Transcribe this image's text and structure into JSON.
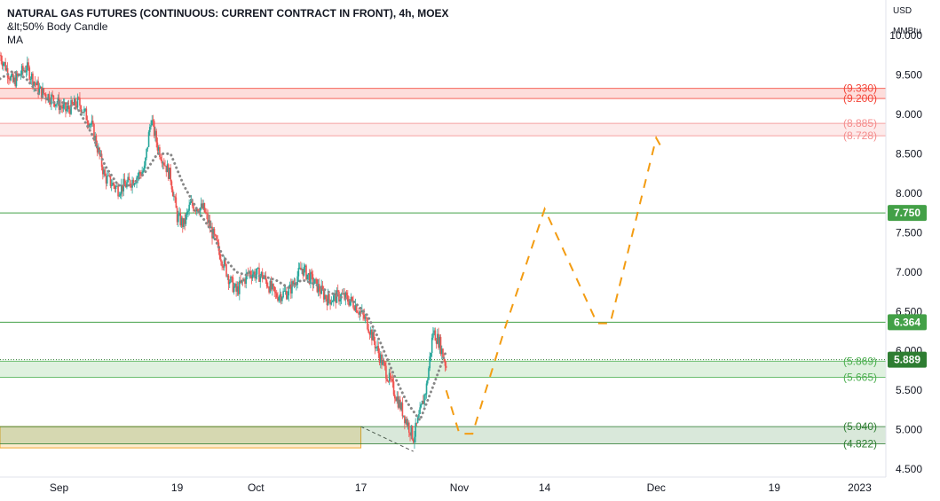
{
  "legend": {
    "title": "NATURAL GAS FUTURES (CONTINUOUS: CURRENT CONTRACT IN FRONT), 4h, MOEX",
    "indicator1": "&lt;50% Body Candle",
    "indicator2": "MA"
  },
  "axis": {
    "unit_line1": "USD",
    "unit_line2": "MMBtu"
  },
  "chart_data": {
    "type": "candlestick",
    "title": "NATURAL GAS FUTURES (CONTINUOUS: CURRENT CONTRACT IN FRONT), 4h, MOEX",
    "ylim": [
      4.4,
      10.45
    ],
    "yticks": [
      "10.000",
      "9.500",
      "9.000",
      "8.500",
      "8.000",
      "7.500",
      "7.000",
      "6.500",
      "6.000",
      "5.500",
      "5.000",
      "4.500"
    ],
    "xlim": [
      "2022-08-23",
      "2023-01-05"
    ],
    "xticks": [
      {
        "label": "Sep",
        "date": "2022-09-01"
      },
      {
        "label": "19",
        "date": "2022-09-19"
      },
      {
        "label": "Oct",
        "date": "2022-10-01"
      },
      {
        "label": "17",
        "date": "2022-10-17"
      },
      {
        "label": "Nov",
        "date": "2022-11-01"
      },
      {
        "label": "14",
        "date": "2022-11-14"
      },
      {
        "label": "Dec",
        "date": "2022-12-01"
      },
      {
        "label": "19",
        "date": "2022-12-19"
      },
      {
        "label": "2023",
        "date": "2023-01-01"
      }
    ],
    "price_path": [
      [
        "2022-08-23",
        9.75
      ],
      [
        "2022-08-25",
        9.4
      ],
      [
        "2022-08-27",
        9.6
      ],
      [
        "2022-08-29",
        9.3
      ],
      [
        "2022-08-31",
        9.2
      ],
      [
        "2022-09-02",
        9.05
      ],
      [
        "2022-09-04",
        9.15
      ],
      [
        "2022-09-06",
        8.85
      ],
      [
        "2022-09-08",
        8.2
      ],
      [
        "2022-09-10",
        8.05
      ],
      [
        "2022-09-12",
        8.15
      ],
      [
        "2022-09-14",
        8.3
      ],
      [
        "2022-09-15",
        8.95
      ],
      [
        "2022-09-16",
        8.6
      ],
      [
        "2022-09-18",
        8.2
      ],
      [
        "2022-09-19",
        7.7
      ],
      [
        "2022-09-20",
        7.6
      ],
      [
        "2022-09-21",
        7.85
      ],
      [
        "2022-09-23",
        7.8
      ],
      [
        "2022-09-25",
        7.35
      ],
      [
        "2022-09-27",
        6.9
      ],
      [
        "2022-09-28",
        6.75
      ],
      [
        "2022-09-30",
        7.0
      ],
      [
        "2022-10-02",
        6.95
      ],
      [
        "2022-10-04",
        6.7
      ],
      [
        "2022-10-06",
        6.75
      ],
      [
        "2022-10-08",
        7.05
      ],
      [
        "2022-10-10",
        6.85
      ],
      [
        "2022-10-12",
        6.65
      ],
      [
        "2022-10-14",
        6.7
      ],
      [
        "2022-10-16",
        6.6
      ],
      [
        "2022-10-18",
        6.35
      ],
      [
        "2022-10-20",
        5.9
      ],
      [
        "2022-10-22",
        5.5
      ],
      [
        "2022-10-24",
        5.1
      ],
      [
        "2022-10-25",
        4.9
      ],
      [
        "2022-10-26",
        5.2
      ],
      [
        "2022-10-27",
        5.55
      ],
      [
        "2022-10-28",
        6.25
      ],
      [
        "2022-10-29",
        6.1
      ],
      [
        "2022-10-30",
        5.8
      ]
    ],
    "ma_path": [
      [
        "2022-08-23",
        9.45
      ],
      [
        "2022-08-25",
        9.55
      ],
      [
        "2022-08-27",
        9.45
      ],
      [
        "2022-08-29",
        9.25
      ],
      [
        "2022-08-31",
        9.15
      ],
      [
        "2022-09-02",
        9.15
      ],
      [
        "2022-09-04",
        9.05
      ],
      [
        "2022-09-06",
        8.75
      ],
      [
        "2022-09-08",
        8.35
      ],
      [
        "2022-09-10",
        8.1
      ],
      [
        "2022-09-12",
        8.1
      ],
      [
        "2022-09-14",
        8.25
      ],
      [
        "2022-09-16",
        8.5
      ],
      [
        "2022-09-18",
        8.5
      ],
      [
        "2022-09-20",
        8.1
      ],
      [
        "2022-09-22",
        7.8
      ],
      [
        "2022-09-24",
        7.55
      ],
      [
        "2022-09-26",
        7.2
      ],
      [
        "2022-09-28",
        7.0
      ],
      [
        "2022-09-30",
        6.95
      ],
      [
        "2022-10-02",
        6.95
      ],
      [
        "2022-10-04",
        6.9
      ],
      [
        "2022-10-06",
        6.8
      ],
      [
        "2022-10-08",
        6.9
      ],
      [
        "2022-10-10",
        6.85
      ],
      [
        "2022-10-12",
        6.75
      ],
      [
        "2022-10-14",
        6.68
      ],
      [
        "2022-10-16",
        6.62
      ],
      [
        "2022-10-18",
        6.45
      ],
      [
        "2022-10-20",
        6.1
      ],
      [
        "2022-10-22",
        5.7
      ],
      [
        "2022-10-24",
        5.35
      ],
      [
        "2022-10-26",
        5.12
      ],
      [
        "2022-10-28",
        5.55
      ],
      [
        "2022-10-30",
        6.0
      ]
    ],
    "projection_path": [
      [
        "2022-10-30",
        5.5
      ],
      [
        "2022-11-01",
        4.95
      ],
      [
        "2022-11-03",
        4.95
      ],
      [
        "2022-11-08",
        6.3
      ],
      [
        "2022-11-14",
        7.8
      ],
      [
        "2022-11-22",
        6.35
      ],
      [
        "2022-11-24",
        6.35
      ],
      [
        "2022-12-01",
        8.7
      ],
      [
        "2022-12-02",
        8.55
      ]
    ],
    "support_resistance_lines": [
      {
        "value": 7.75,
        "label": "7.750",
        "color": "#43a047",
        "badge": true
      },
      {
        "value": 6.364,
        "label": "6.364",
        "color": "#43a047",
        "badge": true
      },
      {
        "value": 5.889,
        "label": "5.889",
        "color": "#2e7d32",
        "badge": true,
        "dotted": true
      }
    ],
    "zones": [
      {
        "top": 9.33,
        "bottom": 9.2,
        "top_label": "(9.330)",
        "bottom_label": "(9.200)",
        "color": "#f44336"
      },
      {
        "top": 8.885,
        "bottom": 8.728,
        "top_label": "(8.885)",
        "bottom_label": "(8.728)",
        "color": "#f48c8c"
      },
      {
        "top": 5.869,
        "bottom": 5.665,
        "top_label": "(5.869)",
        "bottom_label": "(5.665)",
        "color": "#4caf50"
      },
      {
        "top": 5.04,
        "bottom": 4.822,
        "top_label": "(5.040)",
        "bottom_label": "(4.822)",
        "color": "#2e7d32"
      }
    ],
    "orange_zone": {
      "start": "2022-08-23",
      "end": "2022-10-17",
      "top": 5.04,
      "bottom": 4.77,
      "color": "#f7c873"
    },
    "colors": {
      "up_candle": "#26a69a",
      "down_candle": "#ef5350",
      "ma": "#888888",
      "projection": "#f39c12",
      "axis_text": "#131722"
    }
  }
}
